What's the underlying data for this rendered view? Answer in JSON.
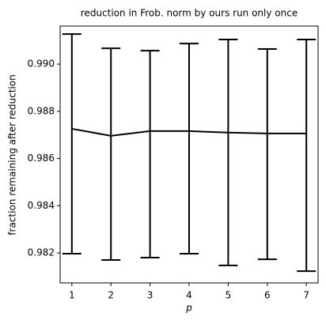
{
  "chart_data": {
    "type": "errorbar_line",
    "title": "reduction in Frob. norm by ours run only once",
    "x_label": "p",
    "y_label": "fraction remaining after reduction",
    "x": [
      1,
      2,
      3,
      4,
      5,
      6,
      7
    ],
    "series": [
      {
        "color": "#000000",
        "values": [
          0.98726,
          0.98696,
          0.98716,
          0.98716,
          0.9871,
          0.98706,
          0.98706
        ],
        "lower": [
          0.98197,
          0.9817,
          0.9818,
          0.98197,
          0.98147,
          0.98173,
          0.98123
        ],
        "upper": [
          0.99127,
          0.99067,
          0.99057,
          0.99087,
          0.99104,
          0.99064,
          0.99104
        ]
      }
    ],
    "xlim": [
      0.7,
      7.3
    ],
    "xticks": [
      1,
      2,
      3,
      4,
      5,
      6,
      7
    ],
    "ylim": [
      0.98073,
      0.99161
    ],
    "yticks": [
      {
        "value": 0.982,
        "label": "0.982"
      },
      {
        "value": 0.984,
        "label": "0.984"
      },
      {
        "value": 0.986,
        "label": "0.986"
      },
      {
        "value": 0.988,
        "label": "0.988"
      },
      {
        "value": 0.99,
        "label": "0.990"
      }
    ]
  }
}
